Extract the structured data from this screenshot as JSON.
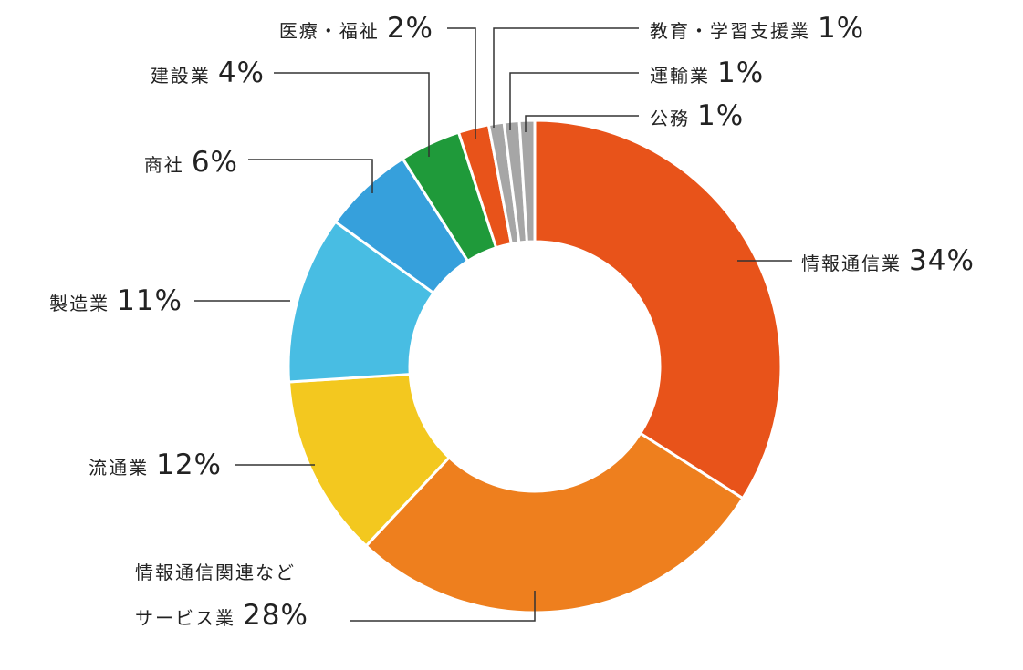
{
  "chart_data": {
    "type": "donut",
    "categories": [
      "情報通信業",
      "情報通信関連など\nサービス業",
      "流通業",
      "製造業",
      "商社",
      "建設業",
      "医療・福祉",
      "教育・学習支援業",
      "運輸業",
      "公務"
    ],
    "values": [
      34,
      28,
      12,
      11,
      6,
      4,
      2,
      1,
      1,
      1
    ],
    "value_labels": [
      "34%",
      "28%",
      "12%",
      "11%",
      "6%",
      "4%",
      "2%",
      "1%",
      "1%",
      "1%"
    ],
    "colors": [
      "#e8531a",
      "#ee7f1e",
      "#f3c81f",
      "#48bde3",
      "#36a0dc",
      "#1f9a3a",
      "#e8531a",
      "#a6a6a6",
      "#a6a6a6",
      "#a6a6a6"
    ]
  }
}
